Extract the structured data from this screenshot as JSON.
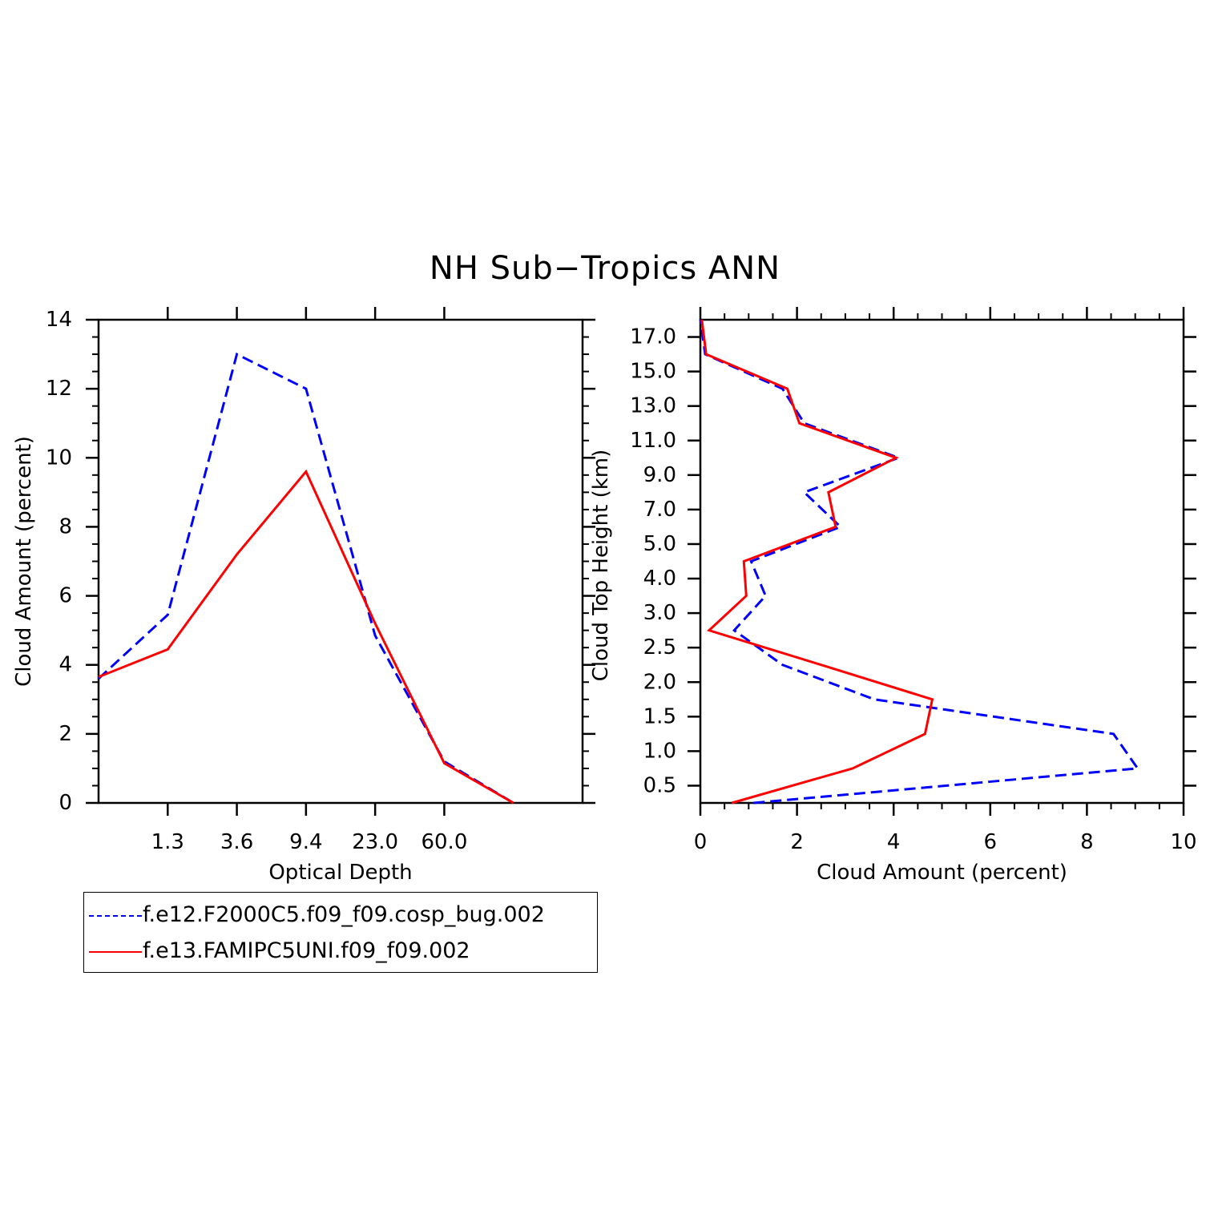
{
  "title": "NH Sub−Tropics ANN",
  "colors": {
    "series_1": "#0000ff",
    "series_2": "#ff0000",
    "axis": "#000000"
  },
  "legend": {
    "items": [
      {
        "label": "f.e12.F2000C5.f09_f09.cosp_bug.002",
        "color": "#0000ff",
        "style": "dashed"
      },
      {
        "label": "f.e13.FAMIPC5UNI.f09_f09.002",
        "color": "#ff0000",
        "style": "solid"
      }
    ]
  },
  "chart_data": [
    {
      "type": "line",
      "xlabel": "Optical Depth",
      "ylabel": "Cloud Amount (percent)",
      "x_index_range": [
        0,
        7
      ],
      "x_ticks": [
        {
          "index": 1,
          "label": "1.3"
        },
        {
          "index": 2,
          "label": "3.6"
        },
        {
          "index": 3,
          "label": "9.4"
        },
        {
          "index": 4,
          "label": "23.0"
        },
        {
          "index": 5,
          "label": "60.0"
        }
      ],
      "ylim": [
        0,
        14
      ],
      "y_ticks": [
        0,
        2,
        4,
        6,
        8,
        10,
        12,
        14
      ],
      "y_minor_step": 0.5,
      "grid": false,
      "series": [
        {
          "name": "f.e12.F2000C5.f09_f09.cosp_bug.002",
          "color": "#0000ff",
          "dashed": true,
          "x": [
            0,
            1,
            2,
            3,
            4,
            5,
            6
          ],
          "values": [
            3.6,
            5.45,
            13.0,
            12.0,
            4.85,
            1.2,
            0
          ]
        },
        {
          "name": "f.e13.FAMIPC5UNI.f09_f09.002",
          "color": "#ff0000",
          "dashed": false,
          "x": [
            0,
            1,
            2,
            3,
            4,
            5,
            6
          ],
          "values": [
            3.65,
            4.45,
            7.2,
            9.6,
            5.2,
            1.15,
            0
          ]
        }
      ]
    },
    {
      "type": "line",
      "xlabel": "Cloud Amount (percent)",
      "ylabel": "Cloud Top Height (km)",
      "xlim": [
        0,
        10
      ],
      "x_ticks": [
        0,
        2,
        4,
        6,
        8,
        10
      ],
      "x_minor_step": 0.5,
      "y_level_range": [
        0,
        14
      ],
      "y_ticks": [
        {
          "level": 0.5,
          "label": "0.5"
        },
        {
          "level": 1.5,
          "label": "1.0"
        },
        {
          "level": 2.5,
          "label": "1.5"
        },
        {
          "level": 3.5,
          "label": "2.0"
        },
        {
          "level": 4.5,
          "label": "2.5"
        },
        {
          "level": 5.5,
          "label": "3.0"
        },
        {
          "level": 6.5,
          "label": "4.0"
        },
        {
          "level": 7.5,
          "label": "5.0"
        },
        {
          "level": 8.5,
          "label": "7.0"
        },
        {
          "level": 9.5,
          "label": "9.0"
        },
        {
          "level": 10.5,
          "label": "11.0"
        },
        {
          "level": 11.5,
          "label": "13.0"
        },
        {
          "level": 12.5,
          "label": "15.0"
        },
        {
          "level": 13.5,
          "label": "17.0"
        }
      ],
      "grid": false,
      "series": [
        {
          "name": "f.e12.F2000C5.f09_f09.cosp_bug.002",
          "color": "#0000ff",
          "dashed": true,
          "y": [
            0,
            1,
            2,
            3,
            4,
            5,
            6,
            7,
            8,
            9,
            10,
            11,
            12,
            13,
            14
          ],
          "values": [
            1.1,
            9.05,
            8.55,
            3.6,
            1.7,
            0.7,
            1.35,
            1.05,
            2.9,
            2.15,
            4.1,
            2.15,
            1.7,
            0.1,
            0.0
          ]
        },
        {
          "name": "f.e13.FAMIPC5UNI.f09_f09.002",
          "color": "#ff0000",
          "dashed": false,
          "y": [
            0,
            1,
            2,
            3,
            4,
            5,
            6,
            7,
            8,
            9,
            10,
            11,
            12,
            13,
            14
          ],
          "values": [
            0.65,
            3.15,
            4.65,
            4.8,
            2.5,
            0.18,
            0.95,
            0.9,
            2.8,
            2.65,
            4.05,
            2.05,
            1.8,
            0.12,
            0.03
          ]
        }
      ]
    }
  ]
}
